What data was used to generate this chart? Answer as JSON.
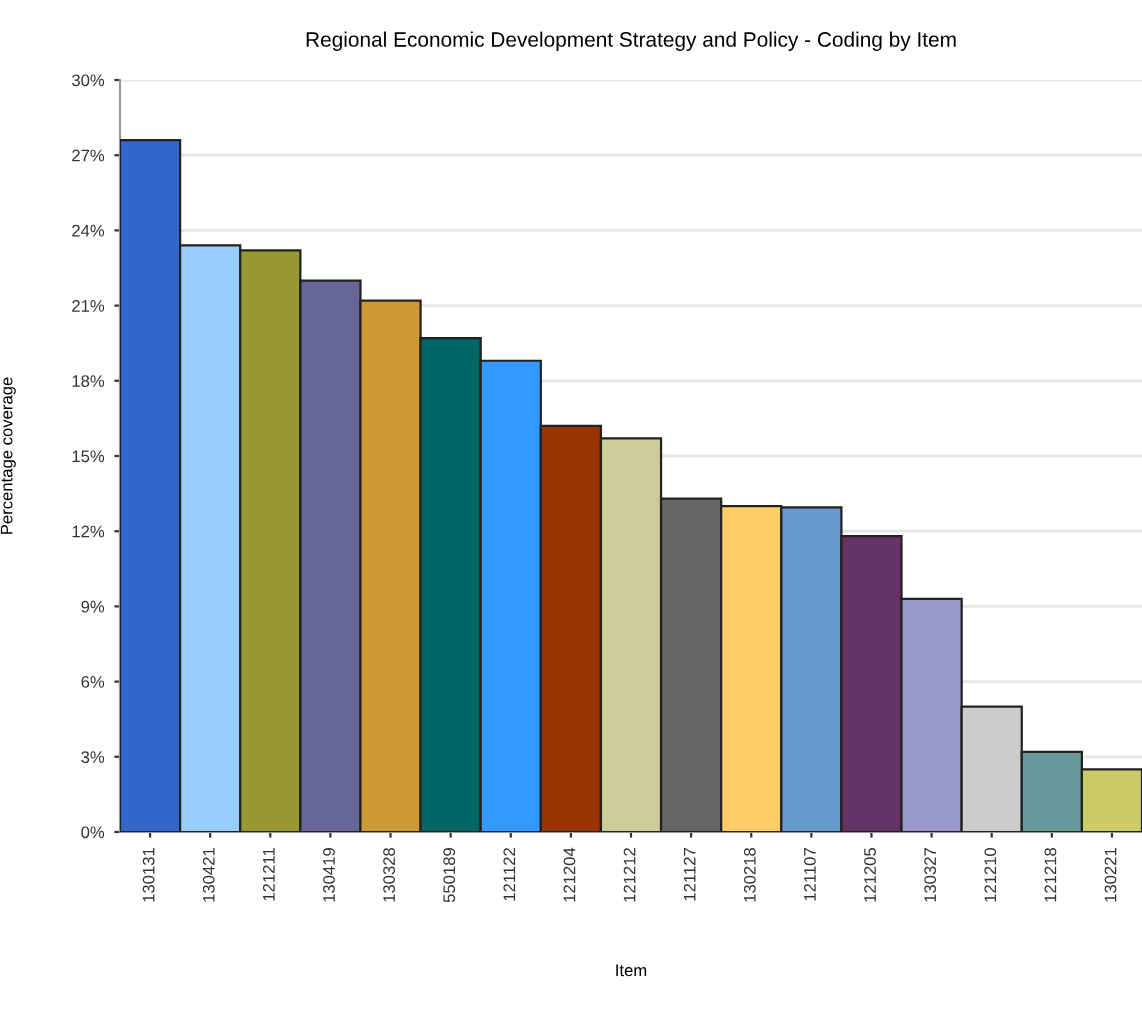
{
  "chart_data": {
    "type": "bar",
    "title": "Regional Economic Development Strategy and Policy - Coding by Item",
    "xlabel": "Item",
    "ylabel": "Percentage coverage",
    "categories": [
      "130131",
      "130421",
      "121211",
      "130419",
      "130328",
      "550189",
      "121122",
      "121204",
      "121212",
      "121127",
      "130218",
      "121107",
      "121205",
      "130327",
      "121210",
      "121218",
      "130221"
    ],
    "values": [
      27.6,
      23.4,
      23.2,
      22.0,
      21.2,
      19.7,
      18.8,
      16.2,
      15.7,
      13.3,
      13.0,
      12.95,
      11.8,
      9.3,
      5.0,
      3.2,
      2.5
    ],
    "colors": [
      "#3366cc",
      "#99ccff",
      "#999933",
      "#666699",
      "#cc9933",
      "#006666",
      "#3399ff",
      "#993300",
      "#cccc99",
      "#666666",
      "#ffcc66",
      "#6699cc",
      "#663366",
      "#9999cc",
      "#cccccc",
      "#669999",
      "#cccc66"
    ],
    "ylim": [
      0,
      30
    ],
    "yticks": [
      {
        "value": 0,
        "label": "0%"
      },
      {
        "value": 3,
        "label": "3%"
      },
      {
        "value": 6,
        "label": "6%"
      },
      {
        "value": 9,
        "label": "9%"
      },
      {
        "value": 12,
        "label": "12%"
      },
      {
        "value": 15,
        "label": "15%"
      },
      {
        "value": 18,
        "label": "18%"
      },
      {
        "value": 21,
        "label": "21%"
      },
      {
        "value": 24,
        "label": "24%"
      },
      {
        "value": 27,
        "label": "27%"
      },
      {
        "value": 30,
        "label": "30%"
      }
    ],
    "grid": "y"
  }
}
